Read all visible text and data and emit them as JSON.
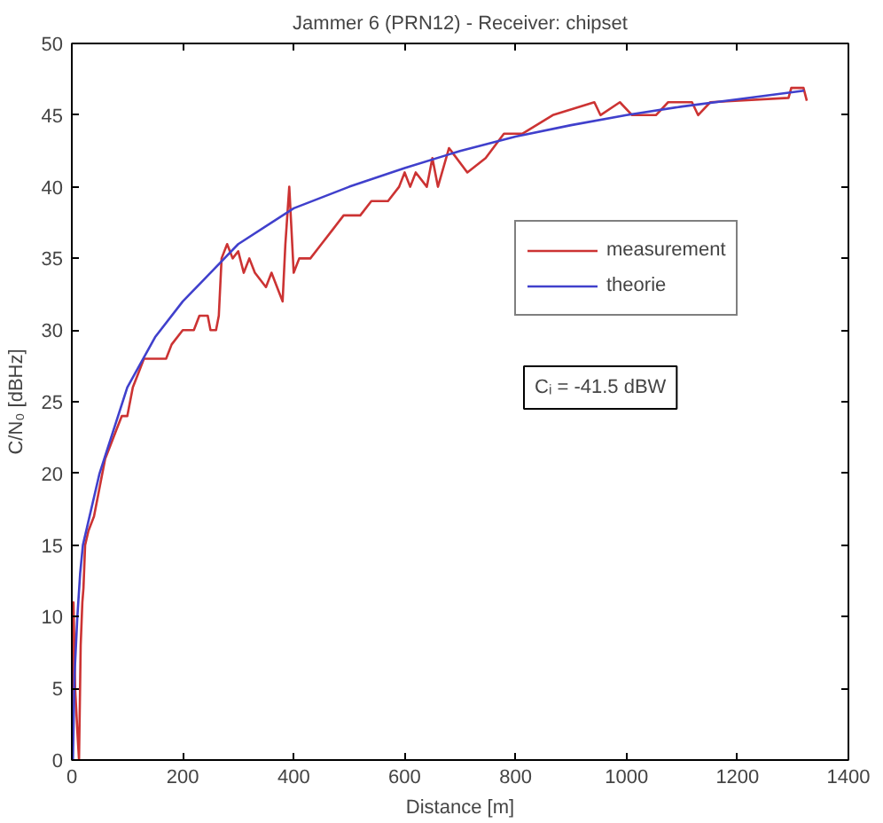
{
  "chart_data": {
    "type": "line",
    "title": "Jammer 6 (PRN12) - Receiver: chipset",
    "xlabel": "Distance [m]",
    "ylabel": "C/N₀ [dBHz]",
    "xlim": [
      0,
      1400
    ],
    "ylim": [
      0,
      50
    ],
    "xticks": [
      0,
      200,
      400,
      600,
      800,
      1000,
      1200,
      1400
    ],
    "yticks": [
      0,
      5,
      10,
      15,
      20,
      25,
      30,
      35,
      40,
      45,
      50
    ],
    "grid": false,
    "legend": "right",
    "annotations": [
      "Cᵢ = -41.5 dBW"
    ],
    "series": [
      {
        "name": "measurement",
        "color": "#cc3333",
        "x": [
          0,
          3,
          6,
          10,
          13,
          16,
          19,
          21,
          24,
          30,
          40,
          50,
          60,
          70,
          80,
          90,
          100,
          110,
          120,
          130,
          150,
          170,
          180,
          200,
          220,
          230,
          245,
          250,
          260,
          265,
          270,
          280,
          290,
          300,
          310,
          320,
          330,
          350,
          360,
          370,
          380,
          385,
          392,
          400,
          410,
          430,
          450,
          470,
          490,
          520,
          540,
          570,
          590,
          600,
          610,
          620,
          640,
          650,
          660,
          680,
          713,
          746,
          779,
          812,
          867,
          942,
          953,
          988,
          1010,
          1053,
          1075,
          1118,
          1129,
          1151,
          1292,
          1297,
          1319,
          1325
        ],
        "values": [
          0,
          11,
          5,
          2,
          0,
          8,
          11,
          12,
          15,
          16,
          17,
          19,
          21,
          22,
          23,
          24,
          24,
          26,
          27,
          28,
          28,
          28,
          29,
          30,
          30,
          31,
          31,
          30,
          30,
          31,
          35,
          36,
          35,
          35.5,
          34,
          35,
          34,
          33,
          34,
          33,
          32,
          36,
          40,
          34,
          35,
          35,
          36,
          37,
          38,
          38,
          39,
          39,
          40,
          41,
          40,
          41,
          40,
          42,
          40,
          42.7,
          41,
          42,
          43.7,
          43.7,
          45,
          45.9,
          45,
          45.9,
          45,
          45,
          45.9,
          45.9,
          45,
          45.9,
          46.2,
          46.9,
          46.9,
          46
        ]
      },
      {
        "name": "theorie",
        "color": "#4040cc",
        "x": [
          2,
          5,
          10,
          15,
          20,
          50,
          100,
          150,
          200,
          250,
          300,
          400,
          500,
          600,
          700,
          800,
          900,
          1000,
          1100,
          1200,
          1320
        ],
        "values": [
          0,
          6,
          10,
          13,
          15,
          20,
          26,
          29.5,
          32,
          34,
          36,
          38.5,
          40,
          41.3,
          42.5,
          43.5,
          44.3,
          45,
          45.6,
          46.1,
          46.7
        ]
      }
    ]
  }
}
